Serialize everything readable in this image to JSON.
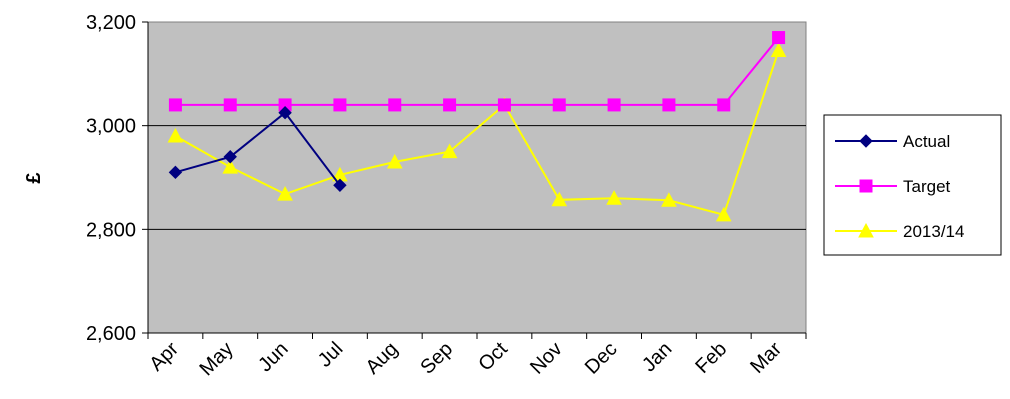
{
  "chart_data": {
    "type": "line",
    "title": "",
    "xlabel": "",
    "ylabel": "£",
    "categories": [
      "Apr",
      "May",
      "Jun",
      "Jul",
      "Aug",
      "Sep",
      "Oct",
      "Nov",
      "Dec",
      "Jan",
      "Feb",
      "Mar"
    ],
    "ylim": [
      2600,
      3200
    ],
    "yticks": [
      2600,
      2800,
      3000,
      3200
    ],
    "ytick_labels": [
      "2,600",
      "2,800",
      "3,000",
      "3,200"
    ],
    "grid": true,
    "plot_background": "#c0c0c0",
    "legend_position": "right",
    "series": [
      {
        "name": "Actual",
        "color": "#000080",
        "marker": "diamond",
        "values": [
          2910,
          2940,
          3025,
          2885,
          null,
          null,
          null,
          null,
          null,
          null,
          null,
          null
        ]
      },
      {
        "name": "Target",
        "color": "#ff00ff",
        "marker": "square",
        "values": [
          3040,
          3040,
          3040,
          3040,
          3040,
          3040,
          3040,
          3040,
          3040,
          3040,
          3040,
          3170
        ]
      },
      {
        "name": "2013/14",
        "color": "#ffff00",
        "marker": "triangle",
        "values": [
          2980,
          2920,
          2868,
          2905,
          2930,
          2950,
          3040,
          2857,
          2860,
          2856,
          2828,
          3145
        ]
      }
    ]
  }
}
